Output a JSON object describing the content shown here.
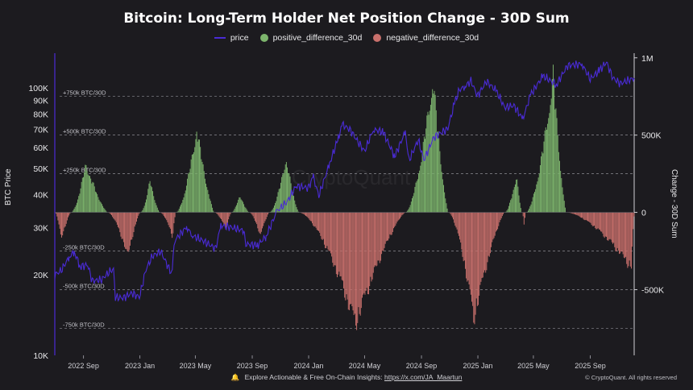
{
  "title": "Bitcoin: Long-Term Holder Net Position Change - 30D Sum",
  "legend": {
    "price": "price",
    "positive": "positive_difference_30d",
    "negative": "negative_difference_30d"
  },
  "colors": {
    "background": "#1c1b1f",
    "price": "#4a2bd6",
    "positive": "#7db56d",
    "negative": "#c9706c",
    "refline": "#8c8c94",
    "text": "#e8e8ea"
  },
  "footer": {
    "text": "Explore Actionable & Free On-Chain Insights:",
    "link": "https://x.com/JA_Maartun",
    "copyright": "© CryptoQuant. All rights reserved"
  },
  "watermark": "CryptoQuant",
  "chart_data": {
    "type": "bar+line",
    "xlabel": "",
    "ylabel_left": "BTC Price",
    "ylabel_right": "Change - 30D Sum",
    "y_left_scale": "log",
    "y_left_range": [
      10000,
      135000
    ],
    "y_left_ticks": [
      "10K",
      "20K",
      "30K",
      "40K",
      "50K",
      "60K",
      "70K",
      "80K",
      "90K",
      "100K"
    ],
    "y_left_tick_values": [
      10000,
      20000,
      30000,
      40000,
      50000,
      60000,
      70000,
      80000,
      90000,
      100000
    ],
    "y_right_range": [
      -925000,
      1030000
    ],
    "y_right_ticks": [
      "1M",
      "500K",
      "0",
      "-500K"
    ],
    "y_right_tick_values": [
      1000000,
      500000,
      0,
      -500000
    ],
    "x_range": [
      "2022-07-01",
      "2025-12-05"
    ],
    "x_ticks": [
      "2022 Sep",
      "2023 Jan",
      "2023 May",
      "2023 Sep",
      "2024 Jan",
      "2024 May",
      "2024 Sep",
      "2025 Jan",
      "2025 May",
      "2025 Sep"
    ],
    "x_tick_dates": [
      "2022-09-01",
      "2023-01-01",
      "2023-05-01",
      "2023-09-01",
      "2024-01-01",
      "2024-05-01",
      "2024-09-01",
      "2025-01-01",
      "2025-05-01",
      "2025-09-01"
    ],
    "reference_lines": [
      {
        "value": 750000,
        "label": "+750k BTC/30D"
      },
      {
        "value": 500000,
        "label": "+500k BTC/30D"
      },
      {
        "value": 250000,
        "label": "+250k BTC/30D"
      },
      {
        "value": -250000,
        "label": "-250k BTC/30D"
      },
      {
        "value": -500000,
        "label": "-500k BTC/30D"
      },
      {
        "value": -750000,
        "label": "-750k BTC/30D"
      }
    ],
    "series": [
      {
        "name": "price",
        "kind": "line",
        "axis": "left",
        "points": [
          [
            "2022-07-01",
            20000
          ],
          [
            "2022-07-15",
            20800
          ],
          [
            "2022-08-01",
            23300
          ],
          [
            "2022-08-12",
            24400
          ],
          [
            "2022-08-25",
            21500
          ],
          [
            "2022-09-10",
            21800
          ],
          [
            "2022-09-20",
            19000
          ],
          [
            "2022-10-10",
            19200
          ],
          [
            "2022-10-28",
            20600
          ],
          [
            "2022-11-05",
            21000
          ],
          [
            "2022-11-09",
            16500
          ],
          [
            "2022-11-25",
            16400
          ],
          [
            "2022-12-15",
            17100
          ],
          [
            "2022-12-31",
            16500
          ],
          [
            "2023-01-14",
            20900
          ],
          [
            "2023-01-28",
            23500
          ],
          [
            "2023-02-15",
            24500
          ],
          [
            "2023-03-10",
            20300
          ],
          [
            "2023-03-18",
            27000
          ],
          [
            "2023-04-12",
            30200
          ],
          [
            "2023-04-25",
            28000
          ],
          [
            "2023-05-15",
            27000
          ],
          [
            "2023-06-14",
            25100
          ],
          [
            "2023-06-25",
            30600
          ],
          [
            "2023-07-15",
            30200
          ],
          [
            "2023-08-15",
            29200
          ],
          [
            "2023-08-18",
            26100
          ],
          [
            "2023-09-12",
            25800
          ],
          [
            "2023-10-01",
            27900
          ],
          [
            "2023-10-24",
            34500
          ],
          [
            "2023-11-15",
            37500
          ],
          [
            "2023-12-05",
            43000
          ],
          [
            "2023-12-31",
            42300
          ],
          [
            "2024-01-11",
            46500
          ],
          [
            "2024-01-23",
            39500
          ],
          [
            "2024-02-15",
            52000
          ],
          [
            "2024-03-05",
            65000
          ],
          [
            "2024-03-14",
            73000
          ],
          [
            "2024-04-01",
            69500
          ],
          [
            "2024-04-15",
            63500
          ],
          [
            "2024-05-01",
            58000
          ],
          [
            "2024-05-20",
            70000
          ],
          [
            "2024-06-10",
            68500
          ],
          [
            "2024-07-05",
            55500
          ],
          [
            "2024-07-28",
            68500
          ],
          [
            "2024-08-05",
            53500
          ],
          [
            "2024-08-25",
            64000
          ],
          [
            "2024-09-06",
            53800
          ],
          [
            "2024-09-28",
            65500
          ],
          [
            "2024-10-28",
            70500
          ],
          [
            "2024-11-12",
            88500
          ],
          [
            "2024-11-22",
            98500
          ],
          [
            "2024-12-05",
            101500
          ],
          [
            "2024-12-17",
            106500
          ],
          [
            "2024-12-31",
            93500
          ],
          [
            "2025-01-20",
            106000
          ],
          [
            "2025-02-10",
            97500
          ],
          [
            "2025-02-28",
            84500
          ],
          [
            "2025-03-20",
            86000
          ],
          [
            "2025-04-08",
            76500
          ],
          [
            "2025-04-25",
            94500
          ],
          [
            "2025-05-22",
            111000
          ],
          [
            "2025-06-20",
            103000
          ],
          [
            "2025-07-14",
            121500
          ],
          [
            "2025-08-14",
            123000
          ],
          [
            "2025-09-01",
            108000
          ],
          [
            "2025-09-20",
            116000
          ],
          [
            "2025-10-06",
            125000
          ],
          [
            "2025-10-20",
            109000
          ],
          [
            "2025-11-05",
            104000
          ],
          [
            "2025-12-05",
            109000
          ]
        ]
      },
      {
        "name": "positive_difference_30d",
        "kind": "bar",
        "axis": "right",
        "humps": [
          {
            "start": "2022-08-05",
            "peak": "2022-09-05",
            "end": "2022-10-22",
            "max": 345000
          },
          {
            "start": "2023-01-02",
            "peak": "2023-01-22",
            "end": "2023-02-12",
            "max": 225000
          },
          {
            "start": "2023-03-20",
            "peak": "2023-05-03",
            "end": "2023-06-10",
            "max": 595000
          },
          {
            "start": "2023-07-18",
            "peak": "2023-08-04",
            "end": "2023-08-24",
            "max": 125000
          },
          {
            "start": "2023-10-08",
            "peak": "2023-11-12",
            "end": "2023-12-10",
            "max": 385000
          },
          {
            "start": "2024-07-28",
            "peak": "2024-09-25",
            "end": "2024-10-28",
            "max": 955000
          },
          {
            "start": "2025-02-28",
            "peak": "2025-03-25",
            "end": "2025-04-05",
            "max": 270000
          },
          {
            "start": "2025-04-15",
            "peak": "2025-06-12",
            "end": "2025-07-10",
            "max": 975000
          }
        ]
      },
      {
        "name": "negative_difference_30d",
        "kind": "bar",
        "axis": "right",
        "humps": [
          {
            "start": "2022-07-01",
            "peak": "2022-07-14",
            "end": "2022-08-04",
            "max": -195000
          },
          {
            "start": "2022-10-23",
            "peak": "2022-12-05",
            "end": "2023-01-01",
            "max": -315000
          },
          {
            "start": "2023-02-13",
            "peak": "2023-03-12",
            "end": "2023-03-19",
            "max": -175000
          },
          {
            "start": "2023-06-11",
            "peak": "2023-07-05",
            "end": "2023-07-17",
            "max": -125000
          },
          {
            "start": "2023-08-25",
            "peak": "2023-09-18",
            "end": "2023-10-07",
            "max": -170000
          },
          {
            "start": "2023-12-11",
            "peak": "2024-04-10",
            "end": "2024-07-27",
            "max": -800000
          },
          {
            "start": "2024-10-29",
            "peak": "2024-12-22",
            "end": "2025-02-27",
            "max": -765000
          },
          {
            "start": "2025-04-06",
            "peak": "2025-04-10",
            "end": "2025-04-14",
            "max": -90000
          },
          {
            "start": "2025-07-11",
            "peak": "2025-11-28",
            "end": "2025-12-05",
            "max": -395000
          }
        ]
      }
    ]
  }
}
